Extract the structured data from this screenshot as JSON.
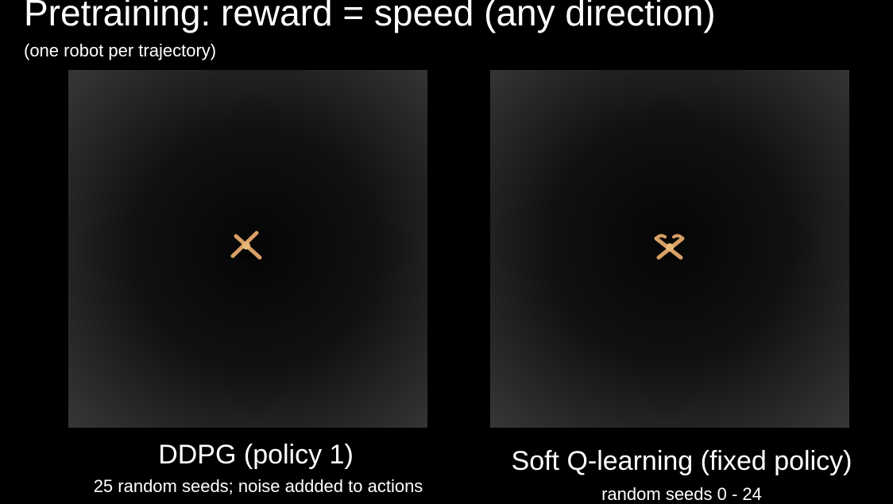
{
  "slide": {
    "title": "Pretraining: reward = speed (any direction)",
    "subtitle": "(one robot per trajectory)"
  },
  "panels": [
    {
      "caption": "DDPG (policy 1)",
      "detail": "25 random seeds; noise addded to actions",
      "image": "ant-robot-top-view"
    },
    {
      "caption": "Soft Q-learning (fixed policy)",
      "detail": "random seeds 0 - 24",
      "image": "ant-robot-top-view"
    }
  ],
  "colors": {
    "background": "#000000",
    "text": "#ffffff",
    "robot_leg": "#d9a066",
    "robot_body": "#e8b878"
  }
}
